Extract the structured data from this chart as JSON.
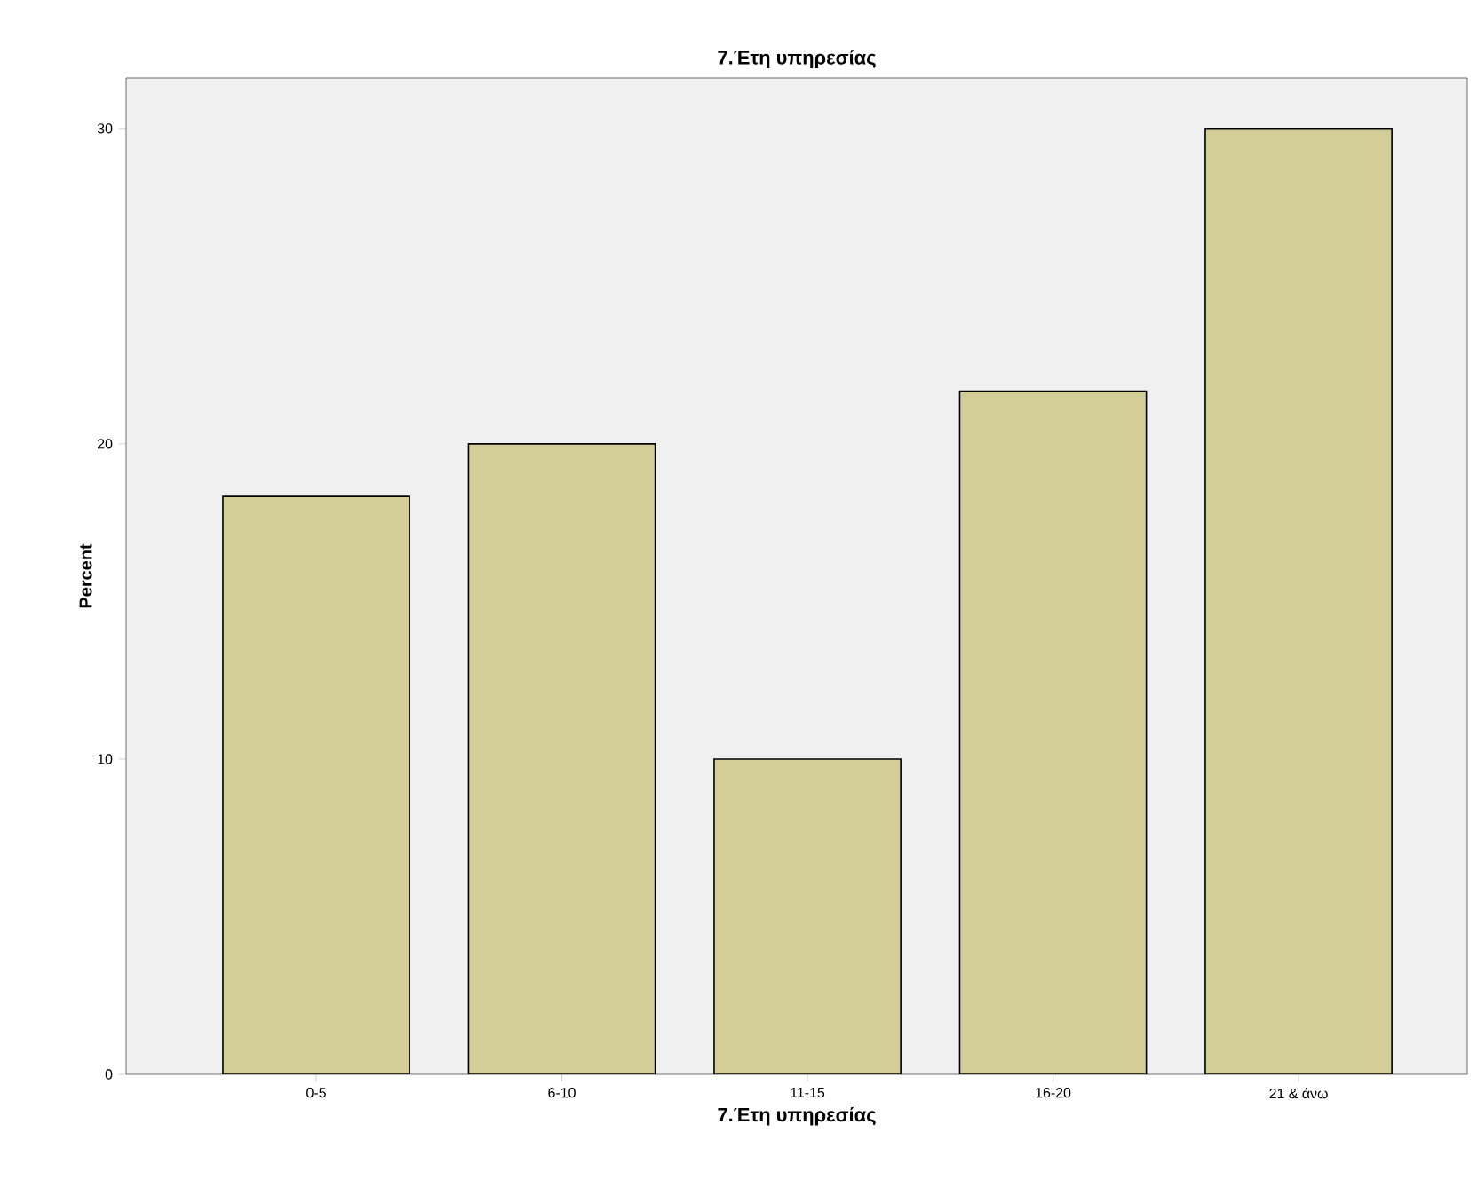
{
  "chart_data": {
    "type": "bar",
    "title": "7.Έτη υπηρεσίας",
    "xlabel": "7.Έτη υπηρεσίας",
    "ylabel": "Percent",
    "categories": [
      "0-5",
      "6-10",
      "11-15",
      "16-20",
      "21 & άνω"
    ],
    "values": [
      18.33,
      20,
      10,
      21.67,
      30
    ],
    "color": "#d3ce98",
    "ylim": [
      0,
      31.6
    ],
    "yticks": [
      0,
      10,
      20,
      30
    ],
    "grid": false
  }
}
